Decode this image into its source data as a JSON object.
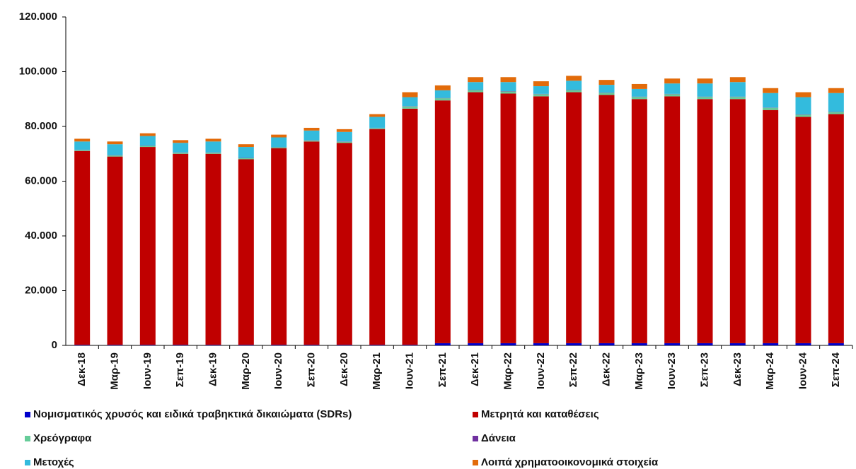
{
  "chart_data": {
    "type": "bar",
    "stacked": true,
    "categories": [
      "Δεκ-18",
      "Μαρ-19",
      "Ιουν-19",
      "Σεπ-19",
      "Δεκ-19",
      "Μαρ-20",
      "Ιουν-20",
      "Σεπ-20",
      "Δεκ-20",
      "Μαρ-21",
      "Ιουν-21",
      "Σεπ-21",
      "Δεκ-21",
      "Μαρ-22",
      "Ιουν-22",
      "Σεπ-22",
      "Δεκ-22",
      "Μαρ-23",
      "Ιουν-23",
      "Σεπ-23",
      "Δεκ-23",
      "Μαρ-24",
      "Ιουν-24",
      "Σεπ-24"
    ],
    "series": [
      {
        "name": "Νομισματικός χρυσός και ειδικά τραβηκτικά δικαιώματα (SDRs)",
        "color": "#0000cc",
        "values": [
          200,
          200,
          200,
          200,
          200,
          200,
          200,
          200,
          200,
          200,
          200,
          800,
          800,
          800,
          800,
          800,
          800,
          800,
          800,
          800,
          800,
          800,
          800,
          800
        ]
      },
      {
        "name": "Μετρητά και καταθέσεις",
        "color": "#c00000",
        "values": [
          70800,
          68800,
          72300,
          69800,
          69800,
          67800,
          71800,
          74300,
          73800,
          78800,
          86300,
          88700,
          91700,
          91200,
          90200,
          91700,
          90700,
          89200,
          90200,
          89200,
          89200,
          85200,
          82700,
          83700
        ]
      },
      {
        "name": "Χρεόγραφα",
        "color": "#66cc99",
        "values": [
          400,
          400,
          400,
          400,
          400,
          400,
          400,
          400,
          400,
          400,
          800,
          800,
          800,
          800,
          800,
          800,
          800,
          800,
          800,
          800,
          800,
          800,
          800,
          800
        ]
      },
      {
        "name": "Δάνεια",
        "color": "#7030a0",
        "values": [
          100,
          100,
          100,
          100,
          100,
          100,
          100,
          100,
          100,
          100,
          100,
          100,
          100,
          100,
          100,
          100,
          100,
          100,
          100,
          100,
          100,
          100,
          100,
          100
        ]
      },
      {
        "name": "Μετοχές",
        "color": "#33bbdd",
        "values": [
          3000,
          4000,
          3500,
          3500,
          4000,
          4000,
          3500,
          3500,
          3500,
          4000,
          3300,
          2800,
          2800,
          3300,
          2800,
          3300,
          2800,
          2800,
          3800,
          4800,
          5300,
          5300,
          6300,
          6800
        ]
      },
      {
        "name": "Λοιπά χρηματοοικονομικά στοιχεία",
        "color": "#e26b0a",
        "values": [
          1000,
          1000,
          1000,
          1000,
          1000,
          1000,
          1000,
          1000,
          1000,
          1000,
          1800,
          1800,
          1800,
          1800,
          1800,
          1800,
          1800,
          1800,
          1800,
          1800,
          1800,
          1800,
          1800,
          1800
        ]
      }
    ],
    "ylim": [
      0,
      120000
    ],
    "yticks": [
      0,
      {
        "value": 20000,
        "label": "20.000"
      },
      {
        "value": 40000,
        "label": "40.000"
      },
      {
        "value": 60000,
        "label": "60.000"
      },
      {
        "value": 80000,
        "label": "80.000"
      },
      {
        "value": 100000,
        "label": "100.000"
      },
      {
        "value": 120000,
        "label": "120.000"
      }
    ],
    "grid": false,
    "legend": "bottom"
  }
}
